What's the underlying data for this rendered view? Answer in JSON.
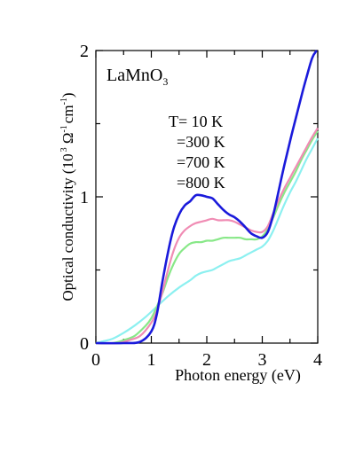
{
  "chart_data": {
    "type": "line",
    "title": "",
    "sample_label": {
      "main": "LaMnO",
      "sub": "3"
    },
    "xlabel": "Photon energy (eV)",
    "ylabel": {
      "text": "Optical conductivity (10",
      "exp1": "3",
      "mid": " Ω",
      "exp2": "-1",
      "unit": "cm",
      "exp3": "-1",
      "close": ")"
    },
    "xlim": [
      0,
      4
    ],
    "ylim": [
      0,
      2
    ],
    "x_ticks": [
      0,
      1,
      2,
      3,
      4
    ],
    "x_tick_labels": [
      "0",
      "1",
      "2",
      "3",
      "4"
    ],
    "y_ticks": [
      0,
      1,
      2
    ],
    "y_tick_labels": [
      "0",
      "1",
      "2"
    ],
    "grid": false,
    "legend_text": [
      "T= 10 K",
      "=300 K",
      "=700 K",
      "=800 K"
    ],
    "series": [
      {
        "name": "10 K",
        "color": "#1a1adb",
        "points": [
          [
            0,
            0
          ],
          [
            0.5,
            0
          ],
          [
            0.8,
            0.01
          ],
          [
            1.0,
            0.08
          ],
          [
            1.1,
            0.2
          ],
          [
            1.2,
            0.42
          ],
          [
            1.3,
            0.62
          ],
          [
            1.4,
            0.78
          ],
          [
            1.5,
            0.88
          ],
          [
            1.6,
            0.94
          ],
          [
            1.7,
            0.97
          ],
          [
            1.8,
            1.01
          ],
          [
            1.9,
            1.01
          ],
          [
            2.0,
            1.0
          ],
          [
            2.1,
            0.99
          ],
          [
            2.2,
            0.95
          ],
          [
            2.3,
            0.91
          ],
          [
            2.4,
            0.88
          ],
          [
            2.5,
            0.86
          ],
          [
            2.6,
            0.83
          ],
          [
            2.7,
            0.79
          ],
          [
            2.8,
            0.75
          ],
          [
            2.9,
            0.73
          ],
          [
            3.0,
            0.72
          ],
          [
            3.1,
            0.76
          ],
          [
            3.2,
            0.88
          ],
          [
            3.3,
            1.05
          ],
          [
            3.4,
            1.22
          ],
          [
            3.5,
            1.38
          ],
          [
            3.6,
            1.53
          ],
          [
            3.7,
            1.68
          ],
          [
            3.8,
            1.82
          ],
          [
            3.9,
            1.95
          ],
          [
            3.98,
            2.0
          ]
        ]
      },
      {
        "name": "300 K",
        "color": "#f08cb4",
        "points": [
          [
            0,
            0
          ],
          [
            0.4,
            0
          ],
          [
            0.6,
            0.02
          ],
          [
            0.8,
            0.05
          ],
          [
            1.0,
            0.14
          ],
          [
            1.1,
            0.22
          ],
          [
            1.2,
            0.35
          ],
          [
            1.3,
            0.5
          ],
          [
            1.4,
            0.63
          ],
          [
            1.5,
            0.72
          ],
          [
            1.6,
            0.77
          ],
          [
            1.7,
            0.8
          ],
          [
            1.8,
            0.82
          ],
          [
            1.9,
            0.83
          ],
          [
            2.0,
            0.84
          ],
          [
            2.1,
            0.85
          ],
          [
            2.2,
            0.84
          ],
          [
            2.3,
            0.84
          ],
          [
            2.4,
            0.84
          ],
          [
            2.5,
            0.83
          ],
          [
            2.6,
            0.81
          ],
          [
            2.7,
            0.79
          ],
          [
            2.8,
            0.77
          ],
          [
            2.9,
            0.76
          ],
          [
            3.0,
            0.76
          ],
          [
            3.1,
            0.8
          ],
          [
            3.2,
            0.89
          ],
          [
            3.3,
            0.98
          ],
          [
            3.4,
            1.06
          ],
          [
            3.5,
            1.13
          ],
          [
            3.6,
            1.2
          ],
          [
            3.7,
            1.27
          ],
          [
            3.8,
            1.34
          ],
          [
            3.9,
            1.41
          ],
          [
            4.0,
            1.47
          ]
        ]
      },
      {
        "name": "700 K",
        "color": "#88e888",
        "points": [
          [
            0,
            0
          ],
          [
            0.3,
            0
          ],
          [
            0.5,
            0.02
          ],
          [
            0.7,
            0.05
          ],
          [
            0.9,
            0.12
          ],
          [
            1.0,
            0.17
          ],
          [
            1.1,
            0.25
          ],
          [
            1.2,
            0.34
          ],
          [
            1.3,
            0.45
          ],
          [
            1.4,
            0.54
          ],
          [
            1.5,
            0.61
          ],
          [
            1.6,
            0.65
          ],
          [
            1.7,
            0.68
          ],
          [
            1.8,
            0.69
          ],
          [
            1.9,
            0.69
          ],
          [
            2.0,
            0.7
          ],
          [
            2.1,
            0.7
          ],
          [
            2.2,
            0.71
          ],
          [
            2.3,
            0.72
          ],
          [
            2.4,
            0.72
          ],
          [
            2.5,
            0.72
          ],
          [
            2.6,
            0.72
          ],
          [
            2.7,
            0.71
          ],
          [
            2.8,
            0.71
          ],
          [
            2.9,
            0.71
          ],
          [
            3.0,
            0.73
          ],
          [
            3.1,
            0.78
          ],
          [
            3.2,
            0.86
          ],
          [
            3.3,
            0.95
          ],
          [
            3.4,
            1.03
          ],
          [
            3.5,
            1.1
          ],
          [
            3.6,
            1.17
          ],
          [
            3.7,
            1.25
          ],
          [
            3.8,
            1.32
          ],
          [
            3.9,
            1.39
          ],
          [
            4.0,
            1.45
          ]
        ]
      },
      {
        "name": "800 K",
        "color": "#8cf0f0",
        "points": [
          [
            0,
            0
          ],
          [
            0.1,
            0.01
          ],
          [
            0.3,
            0.03
          ],
          [
            0.5,
            0.07
          ],
          [
            0.7,
            0.12
          ],
          [
            0.9,
            0.18
          ],
          [
            1.1,
            0.25
          ],
          [
            1.3,
            0.32
          ],
          [
            1.5,
            0.38
          ],
          [
            1.7,
            0.43
          ],
          [
            1.8,
            0.46
          ],
          [
            1.9,
            0.48
          ],
          [
            2.0,
            0.49
          ],
          [
            2.1,
            0.5
          ],
          [
            2.2,
            0.52
          ],
          [
            2.3,
            0.54
          ],
          [
            2.4,
            0.56
          ],
          [
            2.5,
            0.57
          ],
          [
            2.6,
            0.58
          ],
          [
            2.7,
            0.6
          ],
          [
            2.8,
            0.62
          ],
          [
            2.9,
            0.64
          ],
          [
            3.0,
            0.66
          ],
          [
            3.1,
            0.7
          ],
          [
            3.2,
            0.77
          ],
          [
            3.3,
            0.86
          ],
          [
            3.4,
            0.95
          ],
          [
            3.5,
            1.03
          ],
          [
            3.6,
            1.1
          ],
          [
            3.7,
            1.18
          ],
          [
            3.8,
            1.26
          ],
          [
            3.9,
            1.33
          ],
          [
            4.0,
            1.4
          ]
        ]
      }
    ]
  }
}
